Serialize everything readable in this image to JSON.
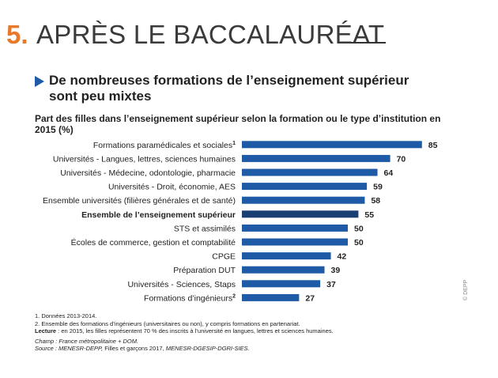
{
  "header": {
    "number": "5.",
    "title": "APRÈS LE BACCALAURÉAT"
  },
  "subhead": {
    "line1": "De nombreuses formations de l’enseignement supérieur",
    "line2": "sont peu mixtes"
  },
  "colors": {
    "accent": "#e8782a",
    "bar": "#1f5aa6",
    "bar_highlight": "#1a3f73"
  },
  "chart_data": {
    "type": "bar",
    "orientation": "horizontal",
    "title": "Part des filles dans l’enseignement supérieur selon la formation ou le type d’institution en 2015 (%)",
    "categories": [
      "Formations paramédicales et sociales",
      "Universités - Langues, lettres, sciences humaines",
      "Universités - Médecine, odontologie, pharmacie",
      "Universités - Droit, économie, AES",
      "Ensemble universités (filières générales et de santé)",
      "Ensemble de l’enseignement supérieur",
      "STS et assimilés",
      "Écoles de commerce, gestion et comptabilité",
      "CPGE",
      "Préparation DUT",
      "Universités - Sciences, Staps",
      "Formations d’ingénieurs"
    ],
    "category_superscripts": [
      "1",
      "",
      "",
      "",
      "",
      "",
      "",
      "",
      "",
      "",
      "",
      "2"
    ],
    "highlight_index": 5,
    "values": [
      85,
      70,
      64,
      59,
      58,
      55,
      50,
      50,
      42,
      39,
      37,
      27
    ],
    "xlim": [
      0,
      100
    ],
    "xlabel": "",
    "ylabel": "",
    "grid": false
  },
  "notes": {
    "n1": "1. Données 2013-2014.",
    "n2": "2. Ensemble des formations d’ingénieurs (universitaires ou non), y compris formations en partenariat.",
    "lecture_label": "Lecture",
    "lecture_text": " : en 2015, les filles représentent 70 % des inscrits à l’université en langues, lettres et sciences humaines.",
    "champ": "Champ : France métropolitaine + DOM.",
    "source_a": "Source : MENESR-DEPP,",
    "source_b": " Filles et garçons 2017,",
    "source_c": " MENESR-DGESIP-DGRI-SIES."
  },
  "copyright": "© DEPP"
}
